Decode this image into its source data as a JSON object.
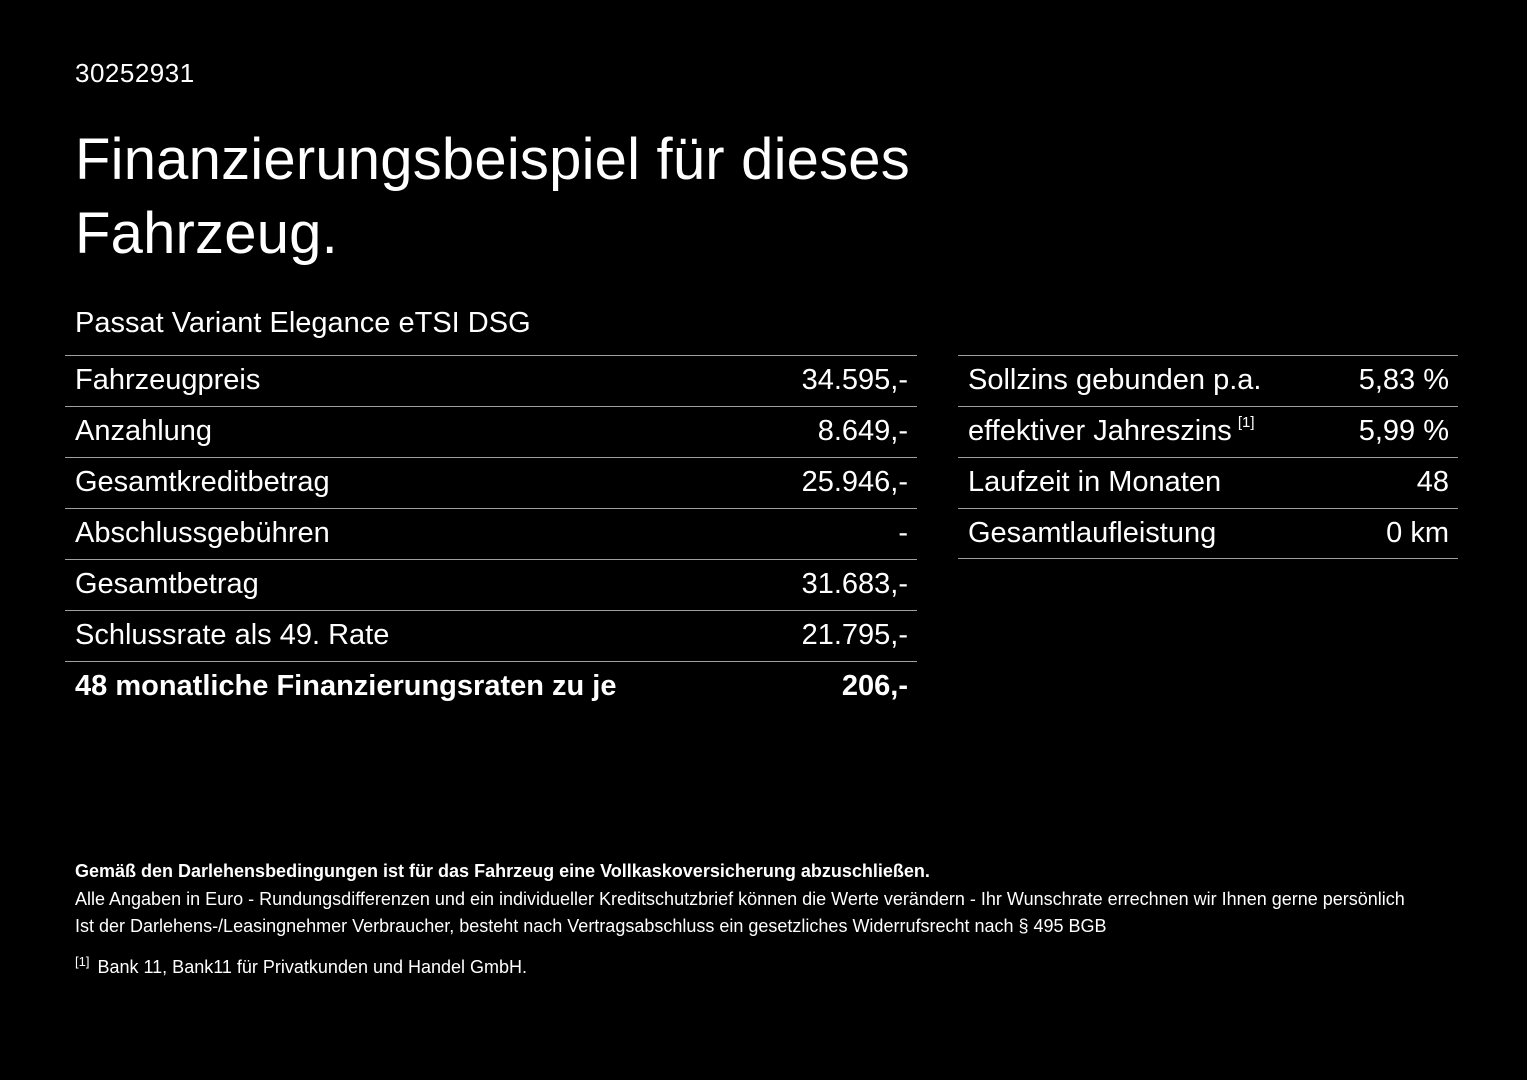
{
  "page": {
    "doc_id": "30252931",
    "title": "Finanzierungsbeispiel für dieses Fahrzeug.",
    "vehicle": "Passat Variant Elegance eTSI DSG"
  },
  "left_table": {
    "rows": [
      {
        "label": "Fahrzeugpreis",
        "value": "34.595,-"
      },
      {
        "label": "Anzahlung",
        "value": "8.649,-"
      },
      {
        "label": "Gesamtkreditbetrag",
        "value": "25.946,-"
      },
      {
        "label": "Abschlussgebühren",
        "value": "-"
      },
      {
        "label": "Gesamtbetrag",
        "value": "31.683,-"
      },
      {
        "label": "Schlussrate als 49. Rate",
        "value": "21.795,-"
      },
      {
        "label": "48 monatliche Finanzierungsraten zu je",
        "value": "206,-"
      }
    ]
  },
  "right_table": {
    "rows": [
      {
        "label": "Sollzins gebunden p.a.",
        "value": "5,83 %"
      },
      {
        "label": "effektiver Jahreszins",
        "sup": "[1]",
        "value": "5,99 %"
      },
      {
        "label": "Laufzeit in Monaten",
        "value": "48"
      },
      {
        "label": "Gesamtlaufleistung",
        "value": "0 km"
      }
    ]
  },
  "footer": {
    "bold_line": "Gemäß den Darlehensbedingungen ist für das Fahrzeug eine Vollkaskoversicherung abzuschließen.",
    "line2": "Alle Angaben in Euro - Rundungsdifferenzen und ein individueller Kreditschutzbrief können die Werte verändern - Ihr Wunschrate errechnen wir Ihnen gerne persönlich",
    "line3": "Ist der Darlehens-/Leasingnehmer Verbraucher, besteht nach Vertragsabschluss ein gesetzliches Widerrufsrecht nach § 495 BGB",
    "footnote_marker": "[1]",
    "footnote_text": "Bank 11, Bank11 für Privatkunden und Handel GmbH."
  },
  "colors": {
    "background": "#000000",
    "text": "#ffffff",
    "divider": "#a0a0a0"
  }
}
